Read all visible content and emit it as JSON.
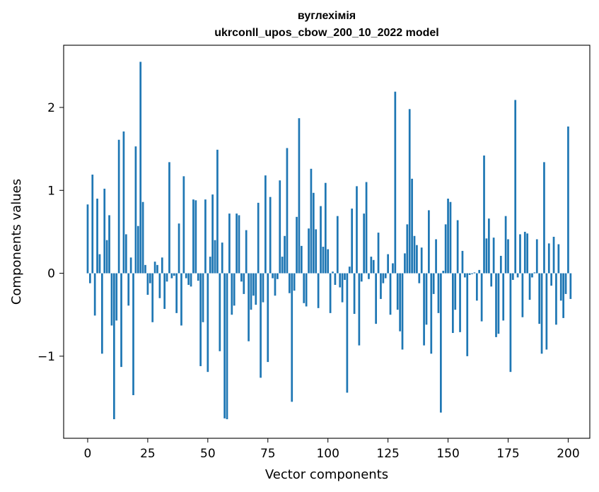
{
  "chart_data": {
    "type": "bar",
    "title": [
      "вуглехімія",
      "ukrconll_upos_cbow_200_10_2022 model"
    ],
    "xlabel": "Vector components",
    "ylabel": "Components values",
    "xlim": [
      -10,
      209
    ],
    "ylim": [
      -1.99,
      2.75
    ],
    "xticks": [
      0,
      25,
      50,
      75,
      100,
      125,
      150,
      175,
      200
    ],
    "yticks": [
      -1,
      0,
      1,
      2
    ],
    "ytick_labels": [
      "−1",
      "0",
      "1",
      "2"
    ],
    "bar_color": "#1f77b4",
    "grid": false,
    "legend": "none",
    "values": [
      0.83,
      -0.12,
      1.19,
      -0.51,
      0.9,
      0.23,
      -0.97,
      1.02,
      0.4,
      0.7,
      -0.63,
      -1.76,
      -0.57,
      1.61,
      -1.13,
      1.71,
      0.47,
      -0.39,
      0.19,
      -1.47,
      1.53,
      0.57,
      2.55,
      0.86,
      0.1,
      -0.26,
      -0.12,
      -0.59,
      0.14,
      0.1,
      -0.3,
      0.19,
      -0.43,
      -0.1,
      1.34,
      -0.06,
      -0.03,
      -0.48,
      0.6,
      -0.63,
      1.17,
      -0.06,
      -0.14,
      -0.16,
      0.89,
      0.88,
      -0.09,
      -1.12,
      -0.59,
      0.89,
      -1.19,
      0.2,
      0.95,
      0.4,
      1.49,
      -0.94,
      0.37,
      -1.75,
      -1.76,
      0.72,
      -0.5,
      -0.39,
      0.72,
      0.7,
      -0.1,
      -0.25,
      0.52,
      -0.82,
      -0.44,
      -0.27,
      -0.38,
      0.85,
      -1.26,
      -0.35,
      1.18,
      -1.07,
      0.92,
      -0.06,
      -0.27,
      -0.07,
      1.12,
      0.2,
      0.45,
      1.51,
      -0.24,
      -1.55,
      -0.21,
      0.68,
      1.87,
      0.33,
      -0.36,
      -0.4,
      0.54,
      1.26,
      0.97,
      0.53,
      -0.42,
      0.81,
      0.32,
      1.09,
      0.29,
      -0.48,
      0.02,
      -0.14,
      0.69,
      -0.17,
      -0.35,
      -0.08,
      -1.44,
      0.08,
      0.78,
      -0.49,
      1.05,
      -0.87,
      -0.1,
      0.72,
      1.1,
      -0.07,
      0.2,
      0.16,
      -0.61,
      0.49,
      -0.31,
      -0.12,
      -0.06,
      0.23,
      -0.5,
      0.12,
      2.19,
      -0.44,
      -0.7,
      -0.92,
      0.24,
      0.59,
      1.98,
      1.14,
      0.45,
      0.34,
      -0.12,
      0.31,
      -0.87,
      -0.62,
      0.76,
      -0.97,
      -0.25,
      0.41,
      -0.48,
      -1.68,
      0.03,
      0.59,
      0.9,
      0.86,
      -0.72,
      -0.44,
      0.64,
      -0.71,
      0.27,
      -0.05,
      -1.0,
      -0.02,
      -0.01,
      0.01,
      -0.33,
      0.04,
      -0.58,
      1.42,
      0.42,
      0.66,
      -0.16,
      0.43,
      -0.77,
      -0.73,
      0.21,
      -0.57,
      0.69,
      0.41,
      -1.19,
      -0.08,
      2.09,
      -0.05,
      0.47,
      -0.53,
      0.5,
      0.48,
      -0.32,
      -0.05,
      0.01,
      0.41,
      -0.61,
      -0.97,
      1.34,
      -0.92,
      0.36,
      -0.15,
      0.44,
      -0.62,
      0.35,
      -0.33,
      -0.54,
      -0.25,
      1.77,
      -0.31
    ]
  }
}
